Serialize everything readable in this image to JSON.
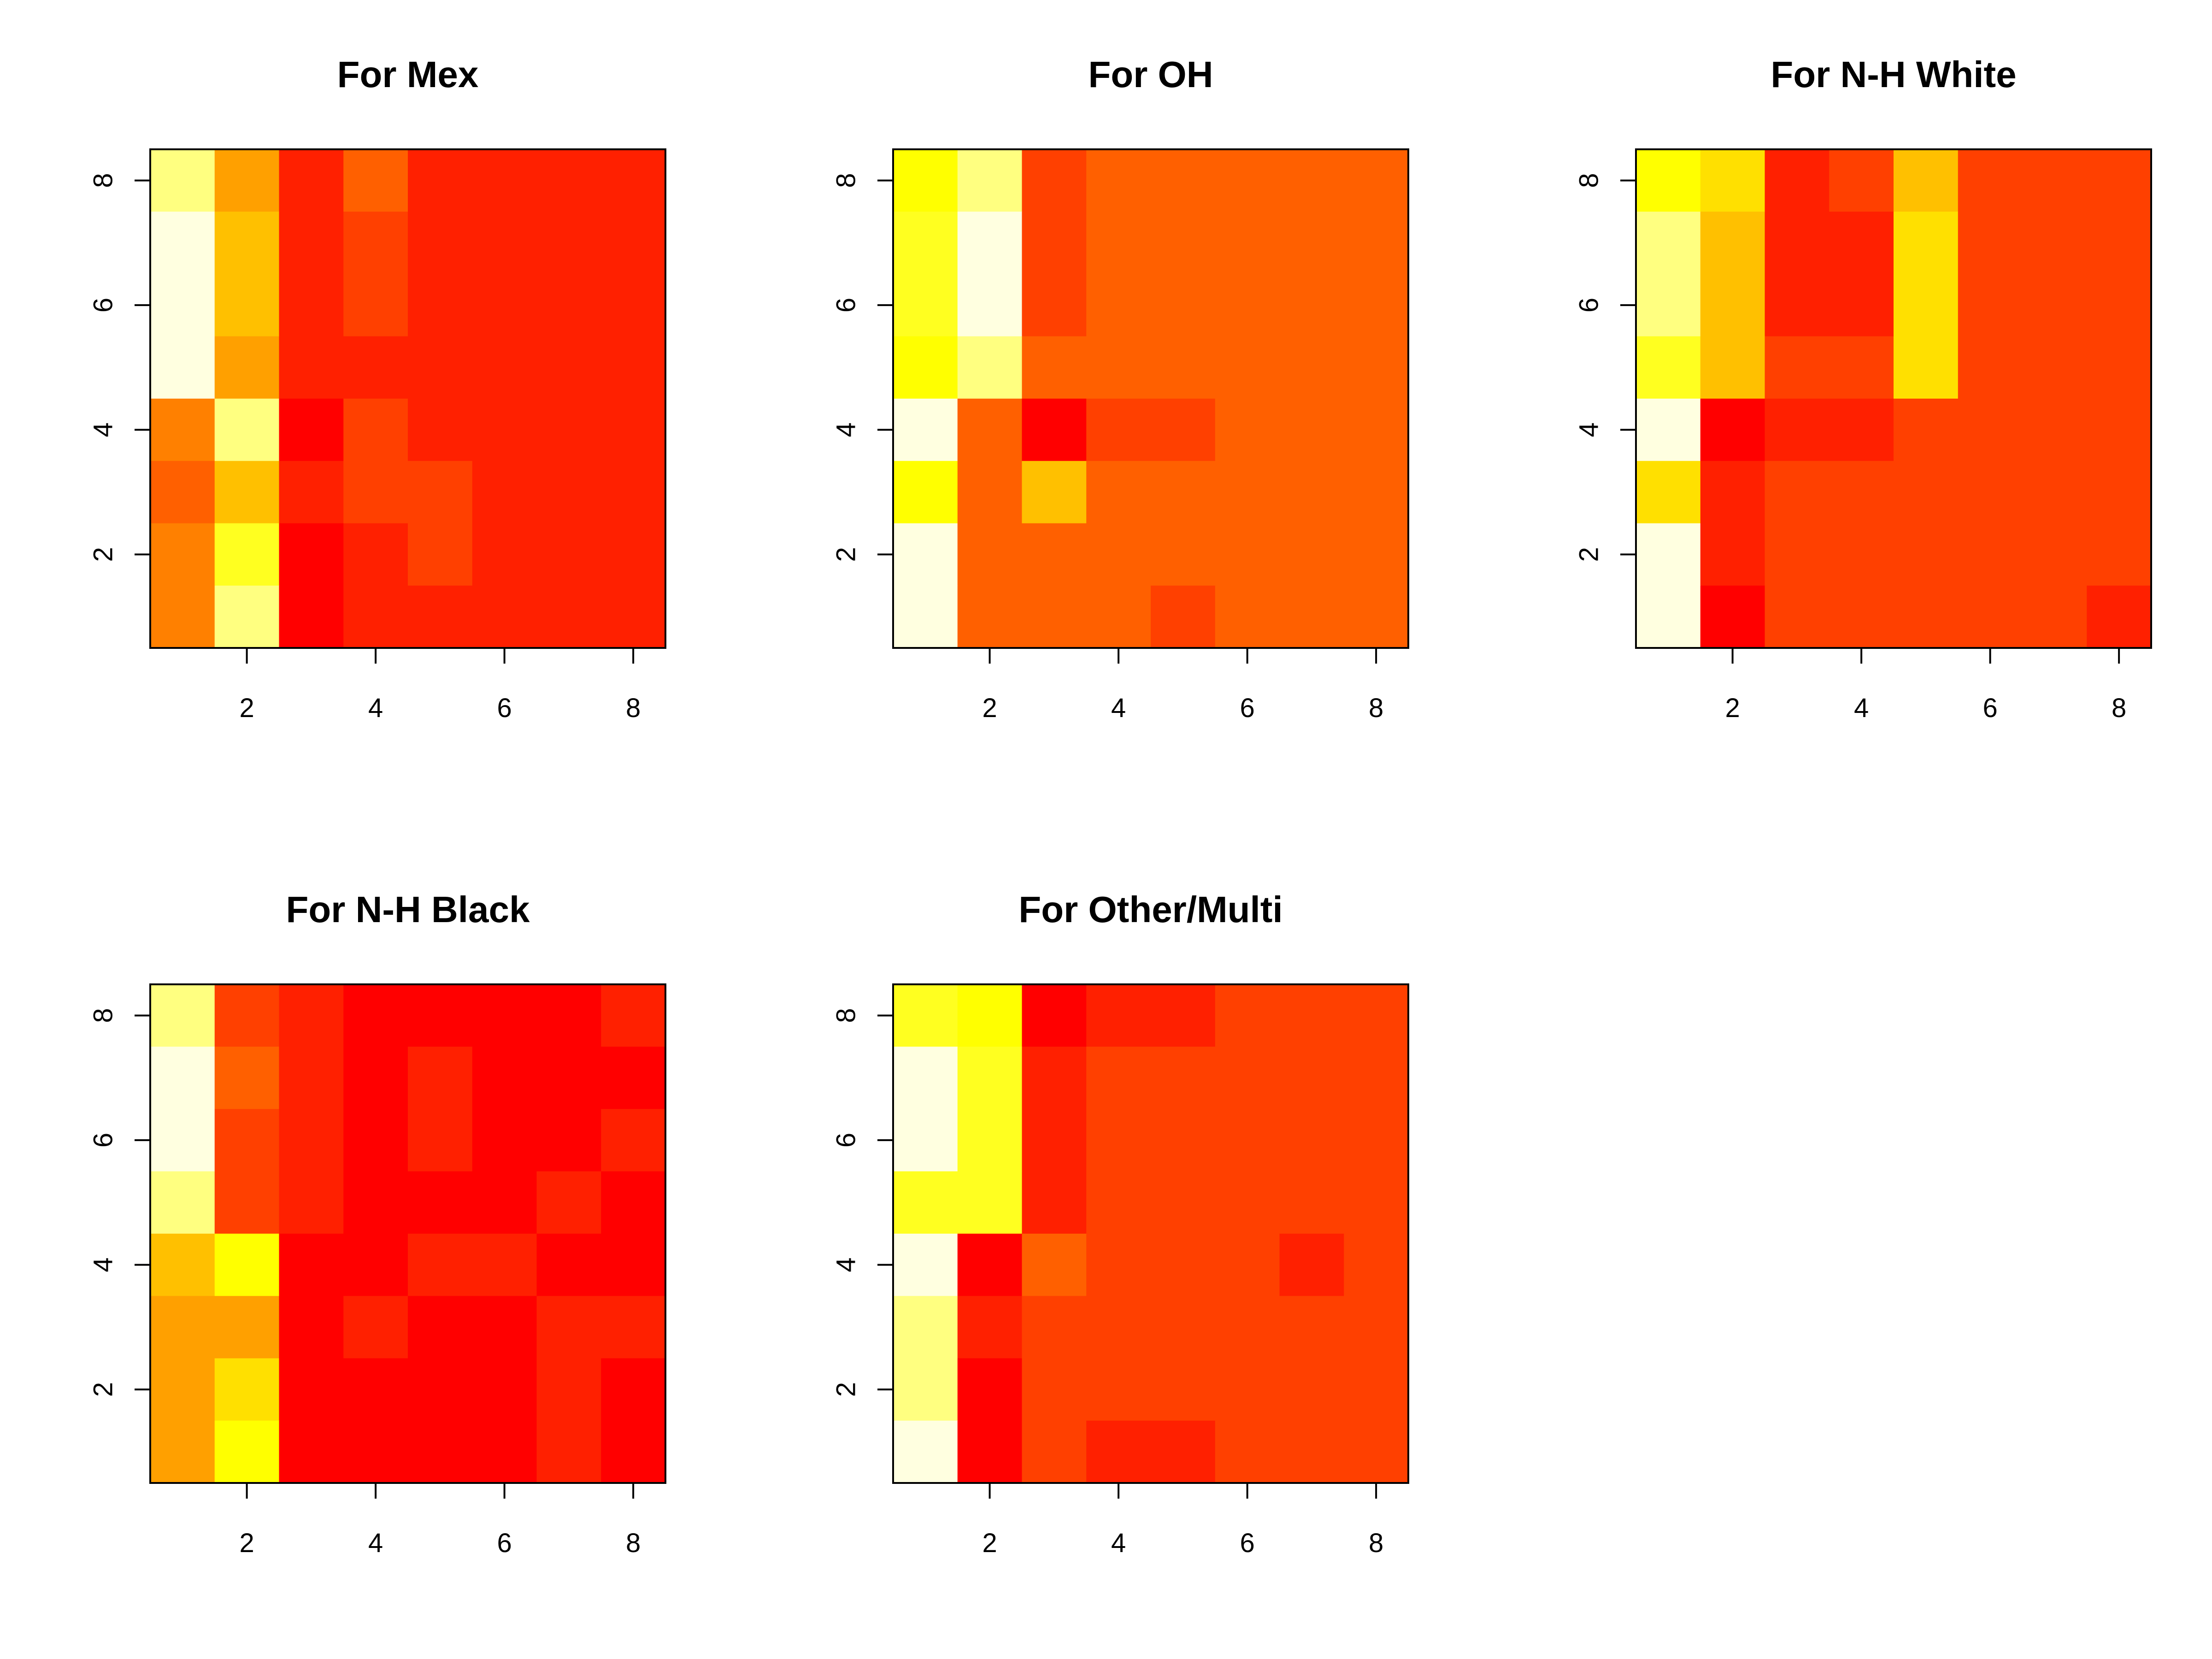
{
  "chart_data": [
    {
      "type": "heatmap",
      "title": "For Mex",
      "x": [
        1,
        2,
        3,
        4,
        5,
        6,
        7,
        8
      ],
      "y": [
        1,
        2,
        3,
        4,
        5,
        6,
        7,
        8
      ],
      "xticks": [
        2,
        4,
        6,
        8
      ],
      "yticks": [
        2,
        4,
        6,
        8
      ],
      "xlim": [
        0.5,
        8.5
      ],
      "ylim": [
        0.5,
        8.5
      ],
      "grid": false,
      "cell_colors_by_row_top_to_bottom": [
        [
          "#FFFF80",
          "#FFA000",
          "#FF2000",
          "#FF6000",
          "#FF2000",
          "#FF2000",
          "#FF2000",
          "#FF2000"
        ],
        [
          "#FFFFE0",
          "#FFC000",
          "#FF2000",
          "#FF4000",
          "#FF2000",
          "#FF2000",
          "#FF2000",
          "#FF2000"
        ],
        [
          "#FFFFE0",
          "#FFC000",
          "#FF2000",
          "#FF4000",
          "#FF2000",
          "#FF2000",
          "#FF2000",
          "#FF2000"
        ],
        [
          "#FFFFE0",
          "#FFA000",
          "#FF2000",
          "#FF2000",
          "#FF2000",
          "#FF2000",
          "#FF2000",
          "#FF2000"
        ],
        [
          "#FF8000",
          "#FFFF80",
          "#FF0000",
          "#FF4000",
          "#FF2000",
          "#FF2000",
          "#FF2000",
          "#FF2000"
        ],
        [
          "#FF6000",
          "#FFC000",
          "#FF2000",
          "#FF4000",
          "#FF4000",
          "#FF2000",
          "#FF2000",
          "#FF2000"
        ],
        [
          "#FF8000",
          "#FFFF20",
          "#FF0000",
          "#FF2000",
          "#FF4000",
          "#FF2000",
          "#FF2000",
          "#FF2000"
        ],
        [
          "#FF8000",
          "#FFFF80",
          "#FF0000",
          "#FF2000",
          "#FF2000",
          "#FF2000",
          "#FF2000",
          "#FF2000"
        ]
      ]
    },
    {
      "type": "heatmap",
      "title": "For OH",
      "x": [
        1,
        2,
        3,
        4,
        5,
        6,
        7,
        8
      ],
      "y": [
        1,
        2,
        3,
        4,
        5,
        6,
        7,
        8
      ],
      "xticks": [
        2,
        4,
        6,
        8
      ],
      "yticks": [
        2,
        4,
        6,
        8
      ],
      "xlim": [
        0.5,
        8.5
      ],
      "ylim": [
        0.5,
        8.5
      ],
      "grid": false,
      "cell_colors_by_row_top_to_bottom": [
        [
          "#FFFF00",
          "#FFFF80",
          "#FF4000",
          "#FF6000",
          "#FF6000",
          "#FF6000",
          "#FF6000",
          "#FF6000"
        ],
        [
          "#FFFF20",
          "#FFFFE0",
          "#FF4000",
          "#FF6000",
          "#FF6000",
          "#FF6000",
          "#FF6000",
          "#FF6000"
        ],
        [
          "#FFFF20",
          "#FFFFE0",
          "#FF4000",
          "#FF6000",
          "#FF6000",
          "#FF6000",
          "#FF6000",
          "#FF6000"
        ],
        [
          "#FFFF00",
          "#FFFF80",
          "#FF6000",
          "#FF6000",
          "#FF6000",
          "#FF6000",
          "#FF6000",
          "#FF6000"
        ],
        [
          "#FFFFE0",
          "#FF6000",
          "#FF0000",
          "#FF4000",
          "#FF4000",
          "#FF6000",
          "#FF6000",
          "#FF6000"
        ],
        [
          "#FFFF00",
          "#FF6000",
          "#FFC000",
          "#FF6000",
          "#FF6000",
          "#FF6000",
          "#FF6000",
          "#FF6000"
        ],
        [
          "#FFFFE0",
          "#FF6000",
          "#FF6000",
          "#FF6000",
          "#FF6000",
          "#FF6000",
          "#FF6000",
          "#FF6000"
        ],
        [
          "#FFFFE0",
          "#FF6000",
          "#FF6000",
          "#FF6000",
          "#FF4000",
          "#FF6000",
          "#FF6000",
          "#FF6000"
        ]
      ]
    },
    {
      "type": "heatmap",
      "title": "For N-H White",
      "x": [
        1,
        2,
        3,
        4,
        5,
        6,
        7,
        8
      ],
      "y": [
        1,
        2,
        3,
        4,
        5,
        6,
        7,
        8
      ],
      "xticks": [
        2,
        4,
        6,
        8
      ],
      "yticks": [
        2,
        4,
        6,
        8
      ],
      "xlim": [
        0.5,
        8.5
      ],
      "ylim": [
        0.5,
        8.5
      ],
      "grid": false,
      "cell_colors_by_row_top_to_bottom": [
        [
          "#FFFF00",
          "#FFE000",
          "#FF2000",
          "#FF4000",
          "#FFC000",
          "#FF4000",
          "#FF4000",
          "#FF4000"
        ],
        [
          "#FFFF80",
          "#FFC000",
          "#FF2000",
          "#FF2000",
          "#FFE000",
          "#FF4000",
          "#FF4000",
          "#FF4000"
        ],
        [
          "#FFFF80",
          "#FFC000",
          "#FF2000",
          "#FF2000",
          "#FFE000",
          "#FF4000",
          "#FF4000",
          "#FF4000"
        ],
        [
          "#FFFF20",
          "#FFC000",
          "#FF4000",
          "#FF4000",
          "#FFE000",
          "#FF4000",
          "#FF4000",
          "#FF4000"
        ],
        [
          "#FFFFE0",
          "#FF0000",
          "#FF2000",
          "#FF2000",
          "#FF4000",
          "#FF4000",
          "#FF4000",
          "#FF4000"
        ],
        [
          "#FFE000",
          "#FF2000",
          "#FF4000",
          "#FF4000",
          "#FF4000",
          "#FF4000",
          "#FF4000",
          "#FF4000"
        ],
        [
          "#FFFFE0",
          "#FF2000",
          "#FF4000",
          "#FF4000",
          "#FF4000",
          "#FF4000",
          "#FF4000",
          "#FF4000"
        ],
        [
          "#FFFFE0",
          "#FF0000",
          "#FF4000",
          "#FF4000",
          "#FF4000",
          "#FF4000",
          "#FF4000",
          "#FF2000"
        ]
      ]
    },
    {
      "type": "heatmap",
      "title": "For N-H Black",
      "x": [
        1,
        2,
        3,
        4,
        5,
        6,
        7,
        8
      ],
      "y": [
        1,
        2,
        3,
        4,
        5,
        6,
        7,
        8
      ],
      "xticks": [
        2,
        4,
        6,
        8
      ],
      "yticks": [
        2,
        4,
        6,
        8
      ],
      "xlim": [
        0.5,
        8.5
      ],
      "ylim": [
        0.5,
        8.5
      ],
      "grid": false,
      "cell_colors_by_row_top_to_bottom": [
        [
          "#FFFF80",
          "#FF4000",
          "#FF2000",
          "#FF0000",
          "#FF0000",
          "#FF0000",
          "#FF0000",
          "#FF2000"
        ],
        [
          "#FFFFE0",
          "#FF6000",
          "#FF2000",
          "#FF0000",
          "#FF2000",
          "#FF0000",
          "#FF0000",
          "#FF0000"
        ],
        [
          "#FFFFE0",
          "#FF4000",
          "#FF2000",
          "#FF0000",
          "#FF2000",
          "#FF0000",
          "#FF0000",
          "#FF2000"
        ],
        [
          "#FFFF80",
          "#FF4000",
          "#FF2000",
          "#FF0000",
          "#FF0000",
          "#FF0000",
          "#FF2000",
          "#FF0000"
        ],
        [
          "#FFC000",
          "#FFFF00",
          "#FF0000",
          "#FF0000",
          "#FF2000",
          "#FF2000",
          "#FF0000",
          "#FF0000"
        ],
        [
          "#FFA000",
          "#FFA000",
          "#FF0000",
          "#FF2000",
          "#FF0000",
          "#FF0000",
          "#FF2000",
          "#FF2000"
        ],
        [
          "#FFA000",
          "#FFE000",
          "#FF0000",
          "#FF0000",
          "#FF0000",
          "#FF0000",
          "#FF2000",
          "#FF0000"
        ],
        [
          "#FFA000",
          "#FFFF00",
          "#FF0000",
          "#FF0000",
          "#FF0000",
          "#FF0000",
          "#FF2000",
          "#FF0000"
        ]
      ]
    },
    {
      "type": "heatmap",
      "title": "For Other/Multi",
      "x": [
        1,
        2,
        3,
        4,
        5,
        6,
        7,
        8
      ],
      "y": [
        1,
        2,
        3,
        4,
        5,
        6,
        7,
        8
      ],
      "xticks": [
        2,
        4,
        6,
        8
      ],
      "yticks": [
        2,
        4,
        6,
        8
      ],
      "xlim": [
        0.5,
        8.5
      ],
      "ylim": [
        0.5,
        8.5
      ],
      "grid": false,
      "cell_colors_by_row_top_to_bottom": [
        [
          "#FFFF20",
          "#FFFF00",
          "#FF0000",
          "#FF2000",
          "#FF2000",
          "#FF4000",
          "#FF4000",
          "#FF4000"
        ],
        [
          "#FFFFE0",
          "#FFFF20",
          "#FF2000",
          "#FF4000",
          "#FF4000",
          "#FF4000",
          "#FF4000",
          "#FF4000"
        ],
        [
          "#FFFFE0",
          "#FFFF20",
          "#FF2000",
          "#FF4000",
          "#FF4000",
          "#FF4000",
          "#FF4000",
          "#FF4000"
        ],
        [
          "#FFFF20",
          "#FFFF20",
          "#FF2000",
          "#FF4000",
          "#FF4000",
          "#FF4000",
          "#FF4000",
          "#FF4000"
        ],
        [
          "#FFFFE0",
          "#FF0000",
          "#FF6000",
          "#FF4000",
          "#FF4000",
          "#FF4000",
          "#FF2000",
          "#FF4000"
        ],
        [
          "#FFFF80",
          "#FF2000",
          "#FF4000",
          "#FF4000",
          "#FF4000",
          "#FF4000",
          "#FF4000",
          "#FF4000"
        ],
        [
          "#FFFF80",
          "#FF0000",
          "#FF4000",
          "#FF4000",
          "#FF4000",
          "#FF4000",
          "#FF4000",
          "#FF4000"
        ],
        [
          "#FFFFE0",
          "#FF0000",
          "#FF4000",
          "#FF2000",
          "#FF2000",
          "#FF4000",
          "#FF4000",
          "#FF4000"
        ]
      ]
    }
  ]
}
